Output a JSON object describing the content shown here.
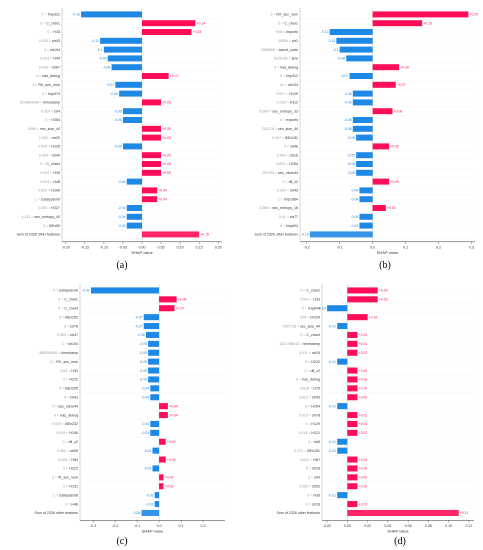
{
  "colors": {
    "positive": "#ff0d57",
    "negative": "#1e88e5",
    "pos_dark": "#8b1a4a",
    "neg_dark": "#2a6fb0"
  },
  "chart_data": [
    {
      "panel_label": "(a)",
      "type": "bar",
      "style": "waterfall",
      "xlabel": "SHAP value",
      "xlim": [
        -0.21,
        0.21
      ],
      "xticks": [
        -0.2,
        -0.15,
        -0.1,
        -0.05,
        0.0,
        0.05,
        0.1,
        0.15,
        0.2
      ],
      "xtick_labels": [
        "-0.20",
        "-0.15",
        "-0.10",
        "-0.05",
        "0.00",
        "0.05",
        "0.10",
        "0.15",
        "0.20"
      ],
      "rows": [
        {
          "prefix": "1 = ",
          "feature": "Imp321",
          "value": -0.16,
          "label": "-0.16"
        },
        {
          "prefix": "0 = ",
          "feature": "C_char1",
          "value": 0.14,
          "label": "+0.14"
        },
        {
          "prefix": "0 = ",
          "feature": "H33",
          "value": 0.13,
          "label": "+0.13"
        },
        {
          "prefix": "0.003 = ",
          "feature": "str43",
          "value": -0.11,
          "label": "-0.11"
        },
        {
          "prefix": "0 = ",
          "feature": "str104",
          "value": -0.1,
          "label": "-0.1"
        },
        {
          "prefix": "0.003 = ",
          "feature": "H44",
          "value": -0.09,
          "label": "-0.09"
        },
        {
          "prefix": "0.043 = ",
          "feature": "str67",
          "value": -0.08,
          "label": "-0.08"
        },
        {
          "prefix": "0 = ",
          "feature": "has_debug",
          "value": 0.07,
          "label": "+0.07"
        },
        {
          "prefix": "1 = ",
          "feature": "RX_sec_num",
          "value": -0.07,
          "label": "-0.07"
        },
        {
          "prefix": "0 = ",
          "feature": "Imp374",
          "value": -0.06,
          "label": "-0.06"
        },
        {
          "prefix": "1424825000 = ",
          "feature": "timestamp",
          "value": 0.05,
          "label": "+0.05"
        },
        {
          "prefix": "0.029 = ",
          "feature": "str4",
          "value": -0.05,
          "label": "-0.05"
        },
        {
          "prefix": "0 = ",
          "feature": "H254",
          "value": -0.05,
          "label": "-0.05"
        },
        {
          "prefix": "4096 = ",
          "feature": "sec_size_44",
          "value": 0.05,
          "label": "+0.05"
        },
        {
          "prefix": "0.002 = ",
          "feature": "str20",
          "value": 0.05,
          "label": "+0.05"
        },
        {
          "prefix": "0.004 = ",
          "feature": "H126",
          "value": -0.05,
          "label": "-0.05"
        },
        {
          "prefix": "0.004 = ",
          "feature": "str40",
          "value": 0.05,
          "label": "+0.05"
        },
        {
          "prefix": "0 = ",
          "feature": "C_char4",
          "value": 0.05,
          "label": "+0.05"
        },
        {
          "prefix": "0.002 = ",
          "feature": "H39",
          "value": 0.05,
          "label": "+0.05"
        },
        {
          "prefix": "0.004 = ",
          "feature": "H48",
          "value": -0.04,
          "label": "-0.04"
        },
        {
          "prefix": "0.002 = ",
          "feature": "H106",
          "value": 0.04,
          "label": "+0.04"
        },
        {
          "prefix": "1 = ",
          "feature": "subsystem9",
          "value": 0.04,
          "label": "+0.04"
        },
        {
          "prefix": "0.004 = ",
          "feature": "H227",
          "value": -0.04,
          "label": "-0.04"
        },
        {
          "prefix": "4.131 = ",
          "feature": "sec_entropy_44",
          "value": -0.04,
          "label": "-0.04"
        },
        {
          "prefix": "0 = ",
          "feature": "BEn50",
          "value": -0.04,
          "label": "-0.04"
        },
        {
          "prefix": "",
          "feature": "Sum of 2326 other features",
          "value": 0.15,
          "label": "+0.15"
        }
      ]
    },
    {
      "panel_label": "(b)",
      "type": "bar",
      "style": "waterfall",
      "xlabel": "SHAP value",
      "xlim": [
        -0.22,
        0.31
      ],
      "xticks": [
        -0.2,
        -0.1,
        0.0,
        0.1,
        0.2,
        0.3
      ],
      "xtick_labels": [
        "-0.2",
        "-0.1",
        "0.0",
        "0.1",
        "0.2",
        "0.3"
      ],
      "rows": [
        {
          "prefix": "2 = ",
          "feature": "RX_sec_num",
          "value": 0.29,
          "label": "+0.29"
        },
        {
          "prefix": "0 = ",
          "feature": "C_char1",
          "value": 0.15,
          "label": "+0.15"
        },
        {
          "prefix": "508 = ",
          "feature": "imports",
          "value": -0.13,
          "label": "-0.13"
        },
        {
          "prefix": "39634 = ",
          "feature": "str1",
          "value": -0.11,
          "label": "-0.11"
        },
        {
          "prefix": "1966608 = ",
          "feature": "sizeof_code",
          "value": -0.1,
          "label": "-0.1"
        },
        {
          "prefix": "6221168 = ",
          "feature": "size",
          "value": -0.08,
          "label": "-0.08"
        },
        {
          "prefix": "0 = ",
          "feature": "has_debug",
          "value": 0.08,
          "label": "+0.08"
        },
        {
          "prefix": "0 = ",
          "feature": "Imp312",
          "value": -0.07,
          "label": "-0.07"
        },
        {
          "prefix": "31 = ",
          "feature": "str104",
          "value": 0.07,
          "label": "+0.07"
        },
        {
          "prefix": "0.007 = ",
          "feature": "H129",
          "value": -0.06,
          "label": "-0.06"
        },
        {
          "prefix": "0.018 = ",
          "feature": "H112",
          "value": -0.06,
          "label": "-0.06"
        },
        {
          "prefix": "6.666 = ",
          "feature": "sec_entropy_33",
          "value": 0.06,
          "label": "+0.06"
        },
        {
          "prefix": "5 = ",
          "feature": "exports",
          "value": -0.06,
          "label": "-0.06"
        },
        {
          "prefix": "201216 = ",
          "feature": "sec_size_44",
          "value": -0.06,
          "label": "-0.06"
        },
        {
          "prefix": "0.007 = ",
          "feature": "BEn151",
          "value": -0.05,
          "label": "-0.05"
        },
        {
          "prefix": "0 = ",
          "feature": "str46",
          "value": 0.05,
          "label": "+0.05"
        },
        {
          "prefix": "0.004 = ",
          "feature": "str16",
          "value": -0.05,
          "label": "-0.05"
        },
        {
          "prefix": "0.003 = ",
          "feature": "H254",
          "value": -0.05,
          "label": "-0.05"
        },
        {
          "prefix": "200704 = ",
          "feature": "sec_vsize44",
          "value": -0.05,
          "label": "-0.05"
        },
        {
          "prefix": "0 = ",
          "feature": "dll_c2",
          "value": 0.05,
          "label": "+0.05"
        },
        {
          "prefix": "0.002 = ",
          "feature": "str43",
          "value": -0.04,
          "label": "-0.04"
        },
        {
          "prefix": "1 = ",
          "feature": "Imp1064",
          "value": -0.04,
          "label": "-0.04"
        },
        {
          "prefix": "6.368 = ",
          "feature": "sec_entropy_16",
          "value": 0.04,
          "label": "+0.04"
        },
        {
          "prefix": "0.01 = ",
          "feature": "str77",
          "value": -0.04,
          "label": "-0.04"
        },
        {
          "prefix": "0 = ",
          "feature": "Imp604",
          "value": -0.04,
          "label": "-0.04"
        },
        {
          "prefix": "",
          "feature": "Sum of 2326 other features",
          "value": -0.19,
          "label": "-0.19"
        }
      ]
    },
    {
      "panel_label": "(c)",
      "type": "bar",
      "style": "waterfall",
      "xlabel": "SHAP value",
      "xlim": [
        -0.36,
        0.3
      ],
      "xticks": [
        -0.3,
        -0.2,
        -0.1,
        0.0,
        0.1,
        0.2
      ],
      "xtick_labels": [
        "-0.3",
        "-0.2",
        "-0.1",
        "0.0",
        "0.1",
        "0.2"
      ],
      "rows": [
        {
          "prefix": "0 = ",
          "feature": "subsystem9",
          "value": -0.31,
          "label": "-0.31"
        },
        {
          "prefix": "0 = ",
          "feature": "C_char1",
          "value": 0.08,
          "label": "+0.08"
        },
        {
          "prefix": "0 = ",
          "feature": "C_char4",
          "value": 0.07,
          "label": "+0.07"
        },
        {
          "prefix": "0 = ",
          "feature": "BEn253",
          "value": -0.07,
          "label": "-0.07"
        },
        {
          "prefix": "0 = ",
          "feature": "str78",
          "value": -0.07,
          "label": "-0.07"
        },
        {
          "prefix": "0.003 = ",
          "feature": "str47",
          "value": -0.06,
          "label": "-0.06"
        },
        {
          "prefix": "1 = ",
          "feature": "str104",
          "value": -0.05,
          "label": "-0.05"
        },
        {
          "prefix": "965350656 = ",
          "feature": "timestamp",
          "value": -0.05,
          "label": "-0.05"
        },
        {
          "prefix": "0 = ",
          "feature": "RX_sec_num",
          "value": -0.05,
          "label": "-0.05"
        },
        {
          "prefix": "0.02 = ",
          "feature": "H33",
          "value": -0.05,
          "label": "-0.05"
        },
        {
          "prefix": "0 = ",
          "feature": "H222",
          "value": -0.05,
          "label": "-0.05"
        },
        {
          "prefix": "0 = ",
          "feature": "BEn255",
          "value": -0.04,
          "label": "-0.04"
        },
        {
          "prefix": "0 = ",
          "feature": "str43",
          "value": -0.04,
          "label": "-0.04"
        },
        {
          "prefix": "0 = ",
          "feature": "sec_vsize44",
          "value": 0.04,
          "label": "+0.04"
        },
        {
          "prefix": "0 = ",
          "feature": "has_debug",
          "value": 0.04,
          "label": "+0.04"
        },
        {
          "prefix": "0.029 = ",
          "feature": "BEn232",
          "value": -0.04,
          "label": "-0.04"
        },
        {
          "prefix": "0.009 = ",
          "feature": "H106",
          "value": -0.04,
          "label": "-0.04"
        },
        {
          "prefix": "0 = ",
          "feature": "dll_c2",
          "value": 0.03,
          "label": "+0.03"
        },
        {
          "prefix": "0.001 = ",
          "feature": "str59",
          "value": -0.03,
          "label": "-0.03"
        },
        {
          "prefix": "0.005 = ",
          "feature": "H83",
          "value": 0.03,
          "label": "+0.03"
        },
        {
          "prefix": "0 = ",
          "feature": "H223",
          "value": -0.03,
          "label": "-0.03"
        },
        {
          "prefix": "0 = ",
          "feature": "W_sec_num",
          "value": 0.02,
          "label": "+0.02"
        },
        {
          "prefix": "0 = ",
          "feature": "H131",
          "value": 0.02,
          "label": "+0.02"
        },
        {
          "prefix": "1 = ",
          "feature": "subsystem8",
          "value": -0.02,
          "label": "-0.02"
        },
        {
          "prefix": "0 = ",
          "feature": "H48",
          "value": -0.02,
          "label": "-0.02"
        },
        {
          "prefix": "",
          "feature": "Sum of 2326 other features",
          "value": -0.08,
          "label": "-0.08"
        }
      ]
    },
    {
      "panel_label": "(d)",
      "type": "bar",
      "style": "waterfall",
      "xlabel": "SHAP value",
      "xlim": [
        -0.025,
        0.125
      ],
      "xticks": [
        -0.02,
        0.0,
        0.02,
        0.04,
        0.06,
        0.08,
        0.1,
        0.12
      ],
      "xtick_labels": [
        "-0.02",
        "0.00",
        "0.02",
        "0.04",
        "0.06",
        "0.08",
        "0.10",
        "0.12"
      ],
      "rows": [
        {
          "prefix": "0 = ",
          "feature": "C_char1",
          "value": 0.03,
          "label": "+0.03"
        },
        {
          "prefix": "0.001 = ",
          "feature": "H33",
          "value": 0.03,
          "label": "+0.03"
        },
        {
          "prefix": "0 = ",
          "feature": "Imp604",
          "value": -0.02,
          "label": "-0.02"
        },
        {
          "prefix": "306 = ",
          "feature": "str104",
          "value": 0.02,
          "label": "+0.02"
        },
        {
          "prefix": "1007728 = ",
          "feature": "sec_size_44",
          "value": -0.01,
          "label": "-0.01"
        },
        {
          "prefix": "0 = ",
          "feature": "C_char4",
          "value": 0.01,
          "label": "+0.01"
        },
        {
          "prefix": "1331798012 = ",
          "feature": "timestamp",
          "value": 0.01,
          "label": "+0.01"
        },
        {
          "prefix": "0.011 = ",
          "feature": "str15",
          "value": 0.01,
          "label": "+0.01"
        },
        {
          "prefix": "0 = ",
          "feature": "H222",
          "value": -0.01,
          "label": "-0.01"
        },
        {
          "prefix": "0 = ",
          "feature": "dll_c2",
          "value": 0.01,
          "label": "+0.01"
        },
        {
          "prefix": "0 = ",
          "feature": "has_debug",
          "value": 0.01,
          "label": "+0.01"
        },
        {
          "prefix": "0.016 = ",
          "feature": "H75",
          "value": 0.01,
          "label": "+0.01"
        },
        {
          "prefix": "0.013 = ",
          "feature": "str43",
          "value": 0.01,
          "label": "+0.01"
        },
        {
          "prefix": "0 = ",
          "feature": "H254",
          "value": -0.01,
          "label": "-0.01"
        },
        {
          "prefix": "0.019 = ",
          "feature": "str78",
          "value": 0.01,
          "label": "+0.01"
        },
        {
          "prefix": "0 = ",
          "feature": "H129",
          "value": 0.01,
          "label": "+0.01"
        },
        {
          "prefix": "0.014 = ",
          "feature": "H121",
          "value": 0.01,
          "label": "+0.01"
        },
        {
          "prefix": "0 = ",
          "feature": "str5",
          "value": -0.01,
          "label": "-0.01"
        },
        {
          "prefix": "0.171 = ",
          "feature": "BEn151",
          "value": -0.01,
          "label": "-0.01"
        },
        {
          "prefix": "0.022 = ",
          "feature": "H67",
          "value": 0.01,
          "label": "+0.01"
        },
        {
          "prefix": "0 = ",
          "feature": "str16",
          "value": 0.01,
          "label": "+0.01"
        },
        {
          "prefix": "0 = ",
          "feature": "str4",
          "value": 0.01,
          "label": "+0.01"
        },
        {
          "prefix": "0.002 = ",
          "feature": "str92",
          "value": 0.01,
          "label": "+0.01"
        },
        {
          "prefix": "0 = ",
          "feature": "H36",
          "value": -0.01,
          "label": "-0.01"
        },
        {
          "prefix": "0 = ",
          "feature": "str16",
          "value": 0.01,
          "label": "+0.01"
        },
        {
          "prefix": "",
          "feature": "Sum of 2326 other features",
          "value": 0.11,
          "label": "+0.11"
        }
      ]
    }
  ]
}
